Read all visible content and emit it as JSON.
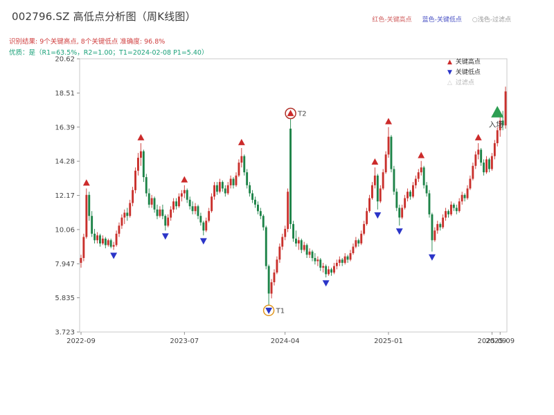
{
  "page": {
    "title": "002796.SZ 高低点分析图（周K线图）",
    "top_legend": {
      "high_label": "红色-关键高点",
      "high_color": "#d06060",
      "low_label": "蓝色-关键低点",
      "low_color": "#4a52c4",
      "filter_label": "○浅色-过滤点",
      "filter_color": "#999999"
    },
    "result_line": {
      "text": "识别结果: 9个关键高点, 8个关键低点  准确度: 96.8%",
      "color": "#d04040"
    },
    "quality_line": {
      "text": "优质：是（R1=63.5%，R2=1.00；T1=2024-02-08 P1=5.40）",
      "color": "#1aa179"
    }
  },
  "chart_data": {
    "type": "candlestick",
    "title": "002796.SZ 高低点分析图（周K线图）",
    "frequency": "weekly",
    "ylim": [
      3.723,
      20.62
    ],
    "y_ticks": [
      "20.62",
      "18.51",
      "16.39",
      "14.28",
      "12.17",
      "10.06",
      "7.947",
      "5.835",
      "3.723"
    ],
    "x_ticks": [
      {
        "label": "2022-09",
        "index": 0
      },
      {
        "label": "2023-07",
        "index": 38
      },
      {
        "label": "2024-04",
        "index": 75
      },
      {
        "label": "2025-01",
        "index": 113
      },
      {
        "label": "2025-09",
        "index": 151
      },
      {
        "label": "2025-09",
        "index": 154
      }
    ],
    "legend": [
      {
        "label": "关键高点",
        "glyph": "▲",
        "color": "#cc2b2b"
      },
      {
        "label": "关键低点",
        "glyph": "▼",
        "color": "#2b35c8"
      },
      {
        "label": "过滤点",
        "glyph": "△",
        "color": "#c9c9c9"
      }
    ],
    "colors": {
      "up": "#c9302c",
      "down": "#1d8348",
      "high_marker": "#cc2b2b",
      "low_marker": "#2b35c8",
      "frame": "#c9c9c9"
    },
    "key_highs": [
      [
        2,
        12.6
      ],
      [
        22,
        15.4
      ],
      [
        38,
        12.8
      ],
      [
        59,
        15.1
      ],
      [
        77,
        16.9
      ],
      [
        108,
        13.9
      ],
      [
        113,
        16.4
      ],
      [
        125,
        14.3
      ],
      [
        146,
        15.4
      ]
    ],
    "key_lows": [
      [
        12,
        8.8
      ],
      [
        31,
        10.0
      ],
      [
        45,
        9.7
      ],
      [
        69,
        5.4
      ],
      [
        90,
        7.1
      ],
      [
        109,
        11.3
      ],
      [
        117,
        10.3
      ],
      [
        129,
        8.7
      ]
    ],
    "t_markers": [
      {
        "label": "T1",
        "index": 69,
        "price": 5.4,
        "type": "low",
        "color": "#e0961e"
      },
      {
        "label": "T2",
        "index": 77,
        "price": 16.9,
        "type": "high",
        "color": "#b03028"
      }
    ],
    "entry_marker": {
      "label": "入场",
      "index": 153,
      "price": 17.3,
      "color": "#2d9e52"
    },
    "candles": [
      [
        8.0,
        8.5,
        7.7,
        8.3
      ],
      [
        8.3,
        9.8,
        8.1,
        9.6
      ],
      [
        9.6,
        12.6,
        9.5,
        12.2
      ],
      [
        12.2,
        12.4,
        10.6,
        10.9
      ],
      [
        10.9,
        11.2,
        9.6,
        9.8
      ],
      [
        9.8,
        10.1,
        9.2,
        9.4
      ],
      [
        9.4,
        9.9,
        9.2,
        9.7
      ],
      [
        9.7,
        9.8,
        9.0,
        9.2
      ],
      [
        9.2,
        9.7,
        9.1,
        9.5
      ],
      [
        9.5,
        9.6,
        8.9,
        9.1
      ],
      [
        9.1,
        9.5,
        9.0,
        9.4
      ],
      [
        9.4,
        9.5,
        8.9,
        9.0
      ],
      [
        9.0,
        9.3,
        8.8,
        9.1
      ],
      [
        9.1,
        10.0,
        9.0,
        9.8
      ],
      [
        9.8,
        10.5,
        9.6,
        10.3
      ],
      [
        10.3,
        11.0,
        10.1,
        10.8
      ],
      [
        10.8,
        11.3,
        10.4,
        11.1
      ],
      [
        11.1,
        11.4,
        10.6,
        10.9
      ],
      [
        10.9,
        11.9,
        10.8,
        11.7
      ],
      [
        11.7,
        12.7,
        11.5,
        12.5
      ],
      [
        12.5,
        13.9,
        12.3,
        13.7
      ],
      [
        13.7,
        14.8,
        13.4,
        14.5
      ],
      [
        14.5,
        15.4,
        14.0,
        14.9
      ],
      [
        14.9,
        15.0,
        13.0,
        13.3
      ],
      [
        13.3,
        13.5,
        12.1,
        12.3
      ],
      [
        12.3,
        12.6,
        11.4,
        11.6
      ],
      [
        11.6,
        12.2,
        11.4,
        12.0
      ],
      [
        12.0,
        12.1,
        11.1,
        11.3
      ],
      [
        11.3,
        11.6,
        10.7,
        10.9
      ],
      [
        10.9,
        11.5,
        10.8,
        11.3
      ],
      [
        11.3,
        11.6,
        10.7,
        10.9
      ],
      [
        10.9,
        11.0,
        10.0,
        10.3
      ],
      [
        10.3,
        11.0,
        10.2,
        10.8
      ],
      [
        10.8,
        11.5,
        10.6,
        11.3
      ],
      [
        11.3,
        12.0,
        11.1,
        11.8
      ],
      [
        11.8,
        12.0,
        11.3,
        11.5
      ],
      [
        11.5,
        12.3,
        11.4,
        12.1
      ],
      [
        12.1,
        12.5,
        11.8,
        12.3
      ],
      [
        12.3,
        12.8,
        12.0,
        12.5
      ],
      [
        12.5,
        12.6,
        11.7,
        11.9
      ],
      [
        11.9,
        12.1,
        11.3,
        11.5
      ],
      [
        11.5,
        11.8,
        11.0,
        11.2
      ],
      [
        11.2,
        11.7,
        11.0,
        11.5
      ],
      [
        11.5,
        11.6,
        10.7,
        10.9
      ],
      [
        10.9,
        11.1,
        10.3,
        10.5
      ],
      [
        10.5,
        10.6,
        9.7,
        10.0
      ],
      [
        10.0,
        10.8,
        9.9,
        10.6
      ],
      [
        10.6,
        11.4,
        10.5,
        11.2
      ],
      [
        11.2,
        12.3,
        11.1,
        12.1
      ],
      [
        12.1,
        13.0,
        11.9,
        12.8
      ],
      [
        12.8,
        13.0,
        12.2,
        12.4
      ],
      [
        12.4,
        13.2,
        12.3,
        13.0
      ],
      [
        13.0,
        13.1,
        12.4,
        12.6
      ],
      [
        12.6,
        12.8,
        12.1,
        12.3
      ],
      [
        12.3,
        13.0,
        12.2,
        12.8
      ],
      [
        12.8,
        13.4,
        12.6,
        13.2
      ],
      [
        13.2,
        13.3,
        12.6,
        12.8
      ],
      [
        12.8,
        13.6,
        12.7,
        13.4
      ],
      [
        13.4,
        14.4,
        13.3,
        14.2
      ],
      [
        14.2,
        15.1,
        13.9,
        14.6
      ],
      [
        14.6,
        14.7,
        13.4,
        13.6
      ],
      [
        13.6,
        13.8,
        12.6,
        12.8
      ],
      [
        12.8,
        13.0,
        12.1,
        12.3
      ],
      [
        12.3,
        12.5,
        11.7,
        11.9
      ],
      [
        11.9,
        12.1,
        11.4,
        11.6
      ],
      [
        11.6,
        11.8,
        11.0,
        11.2
      ],
      [
        11.2,
        11.4,
        10.7,
        10.9
      ],
      [
        10.9,
        11.0,
        10.0,
        10.2
      ],
      [
        10.2,
        10.3,
        7.6,
        7.8
      ],
      [
        7.8,
        7.9,
        5.4,
        6.1
      ],
      [
        6.1,
        7.0,
        5.8,
        6.8
      ],
      [
        6.8,
        7.6,
        6.6,
        7.4
      ],
      [
        7.4,
        8.4,
        7.3,
        8.2
      ],
      [
        8.2,
        9.2,
        8.0,
        9.0
      ],
      [
        9.0,
        9.8,
        8.8,
        9.6
      ],
      [
        9.6,
        10.3,
        9.4,
        10.1
      ],
      [
        10.1,
        12.6,
        9.9,
        12.4
      ],
      [
        16.3,
        16.9,
        10.1,
        10.4
      ],
      [
        10.4,
        10.6,
        9.3,
        9.5
      ],
      [
        9.5,
        10.0,
        9.0,
        9.2
      ],
      [
        9.2,
        9.6,
        8.8,
        9.4
      ],
      [
        9.4,
        9.5,
        8.6,
        8.8
      ],
      [
        8.8,
        9.3,
        8.7,
        9.1
      ],
      [
        9.1,
        9.2,
        8.3,
        8.5
      ],
      [
        8.5,
        8.9,
        8.3,
        8.7
      ],
      [
        8.7,
        8.8,
        8.1,
        8.3
      ],
      [
        8.3,
        8.6,
        7.9,
        8.1
      ],
      [
        8.1,
        8.4,
        7.8,
        8.2
      ],
      [
        8.2,
        8.3,
        7.5,
        7.7
      ],
      [
        7.7,
        8.0,
        7.4,
        7.8
      ],
      [
        7.8,
        7.9,
        7.1,
        7.3
      ],
      [
        7.3,
        7.8,
        7.2,
        7.6
      ],
      [
        7.6,
        7.7,
        7.2,
        7.4
      ],
      [
        7.4,
        8.0,
        7.3,
        7.8
      ],
      [
        7.8,
        8.2,
        7.6,
        8.0
      ],
      [
        8.0,
        8.4,
        7.8,
        8.2
      ],
      [
        8.2,
        8.3,
        7.8,
        8.0
      ],
      [
        8.0,
        8.6,
        7.9,
        8.4
      ],
      [
        8.4,
        8.5,
        8.0,
        8.2
      ],
      [
        8.2,
        8.8,
        8.1,
        8.6
      ],
      [
        8.6,
        9.2,
        8.5,
        9.0
      ],
      [
        9.0,
        9.6,
        8.9,
        9.4
      ],
      [
        9.4,
        9.5,
        9.0,
        9.2
      ],
      [
        9.2,
        10.0,
        9.1,
        9.8
      ],
      [
        9.8,
        10.6,
        9.7,
        10.4
      ],
      [
        10.4,
        11.4,
        10.3,
        11.2
      ],
      [
        11.2,
        12.2,
        11.1,
        12.0
      ],
      [
        12.0,
        13.0,
        11.9,
        12.8
      ],
      [
        12.8,
        13.9,
        12.6,
        13.4
      ],
      [
        13.4,
        13.5,
        11.3,
        11.8
      ],
      [
        11.8,
        12.8,
        11.7,
        12.6
      ],
      [
        12.6,
        13.8,
        12.5,
        13.6
      ],
      [
        13.6,
        14.9,
        13.5,
        14.7
      ],
      [
        14.7,
        16.4,
        14.5,
        15.8
      ],
      [
        15.8,
        15.9,
        13.6,
        13.8
      ],
      [
        13.8,
        14.0,
        12.2,
        12.4
      ],
      [
        12.4,
        12.6,
        11.2,
        11.4
      ],
      [
        11.4,
        11.6,
        10.3,
        10.8
      ],
      [
        10.8,
        11.6,
        10.7,
        11.4
      ],
      [
        11.4,
        12.2,
        11.3,
        12.0
      ],
      [
        12.0,
        12.6,
        11.8,
        12.4
      ],
      [
        12.4,
        12.5,
        11.9,
        12.1
      ],
      [
        12.1,
        13.0,
        12.0,
        12.8
      ],
      [
        12.8,
        13.4,
        12.6,
        13.2
      ],
      [
        13.2,
        13.8,
        13.0,
        13.6
      ],
      [
        13.6,
        14.3,
        13.4,
        13.9
      ],
      [
        13.9,
        14.0,
        12.6,
        12.8
      ],
      [
        12.8,
        13.0,
        12.1,
        12.3
      ],
      [
        12.3,
        12.5,
        10.8,
        11.0
      ],
      [
        11.0,
        11.1,
        8.7,
        9.4
      ],
      [
        9.4,
        10.2,
        9.3,
        10.0
      ],
      [
        10.0,
        10.6,
        9.8,
        10.4
      ],
      [
        10.4,
        10.5,
        10.0,
        10.2
      ],
      [
        10.2,
        11.0,
        10.1,
        10.8
      ],
      [
        10.8,
        11.4,
        10.6,
        11.2
      ],
      [
        11.2,
        11.3,
        10.8,
        11.0
      ],
      [
        11.0,
        11.8,
        10.9,
        11.6
      ],
      [
        11.6,
        11.7,
        11.2,
        11.4
      ],
      [
        11.4,
        11.6,
        11.0,
        11.2
      ],
      [
        11.2,
        12.0,
        11.1,
        11.8
      ],
      [
        11.8,
        12.4,
        11.6,
        12.2
      ],
      [
        12.2,
        12.3,
        11.8,
        12.0
      ],
      [
        12.0,
        12.8,
        11.9,
        12.6
      ],
      [
        12.6,
        13.4,
        12.5,
        13.2
      ],
      [
        13.2,
        14.2,
        13.1,
        14.0
      ],
      [
        14.0,
        14.9,
        13.8,
        14.7
      ],
      [
        14.7,
        15.4,
        14.4,
        15.0
      ],
      [
        15.0,
        15.1,
        14.0,
        14.2
      ],
      [
        14.2,
        14.4,
        13.4,
        13.6
      ],
      [
        13.6,
        14.6,
        13.5,
        14.4
      ],
      [
        14.4,
        14.5,
        13.6,
        13.8
      ],
      [
        13.8,
        14.8,
        13.7,
        14.6
      ],
      [
        14.6,
        15.6,
        14.4,
        15.4
      ],
      [
        15.4,
        16.4,
        15.2,
        16.2
      ],
      [
        16.2,
        17.2,
        15.8,
        16.8
      ],
      [
        16.8,
        17.4,
        16.2,
        16.5
      ],
      [
        16.5,
        18.9,
        16.3,
        18.6
      ]
    ]
  }
}
